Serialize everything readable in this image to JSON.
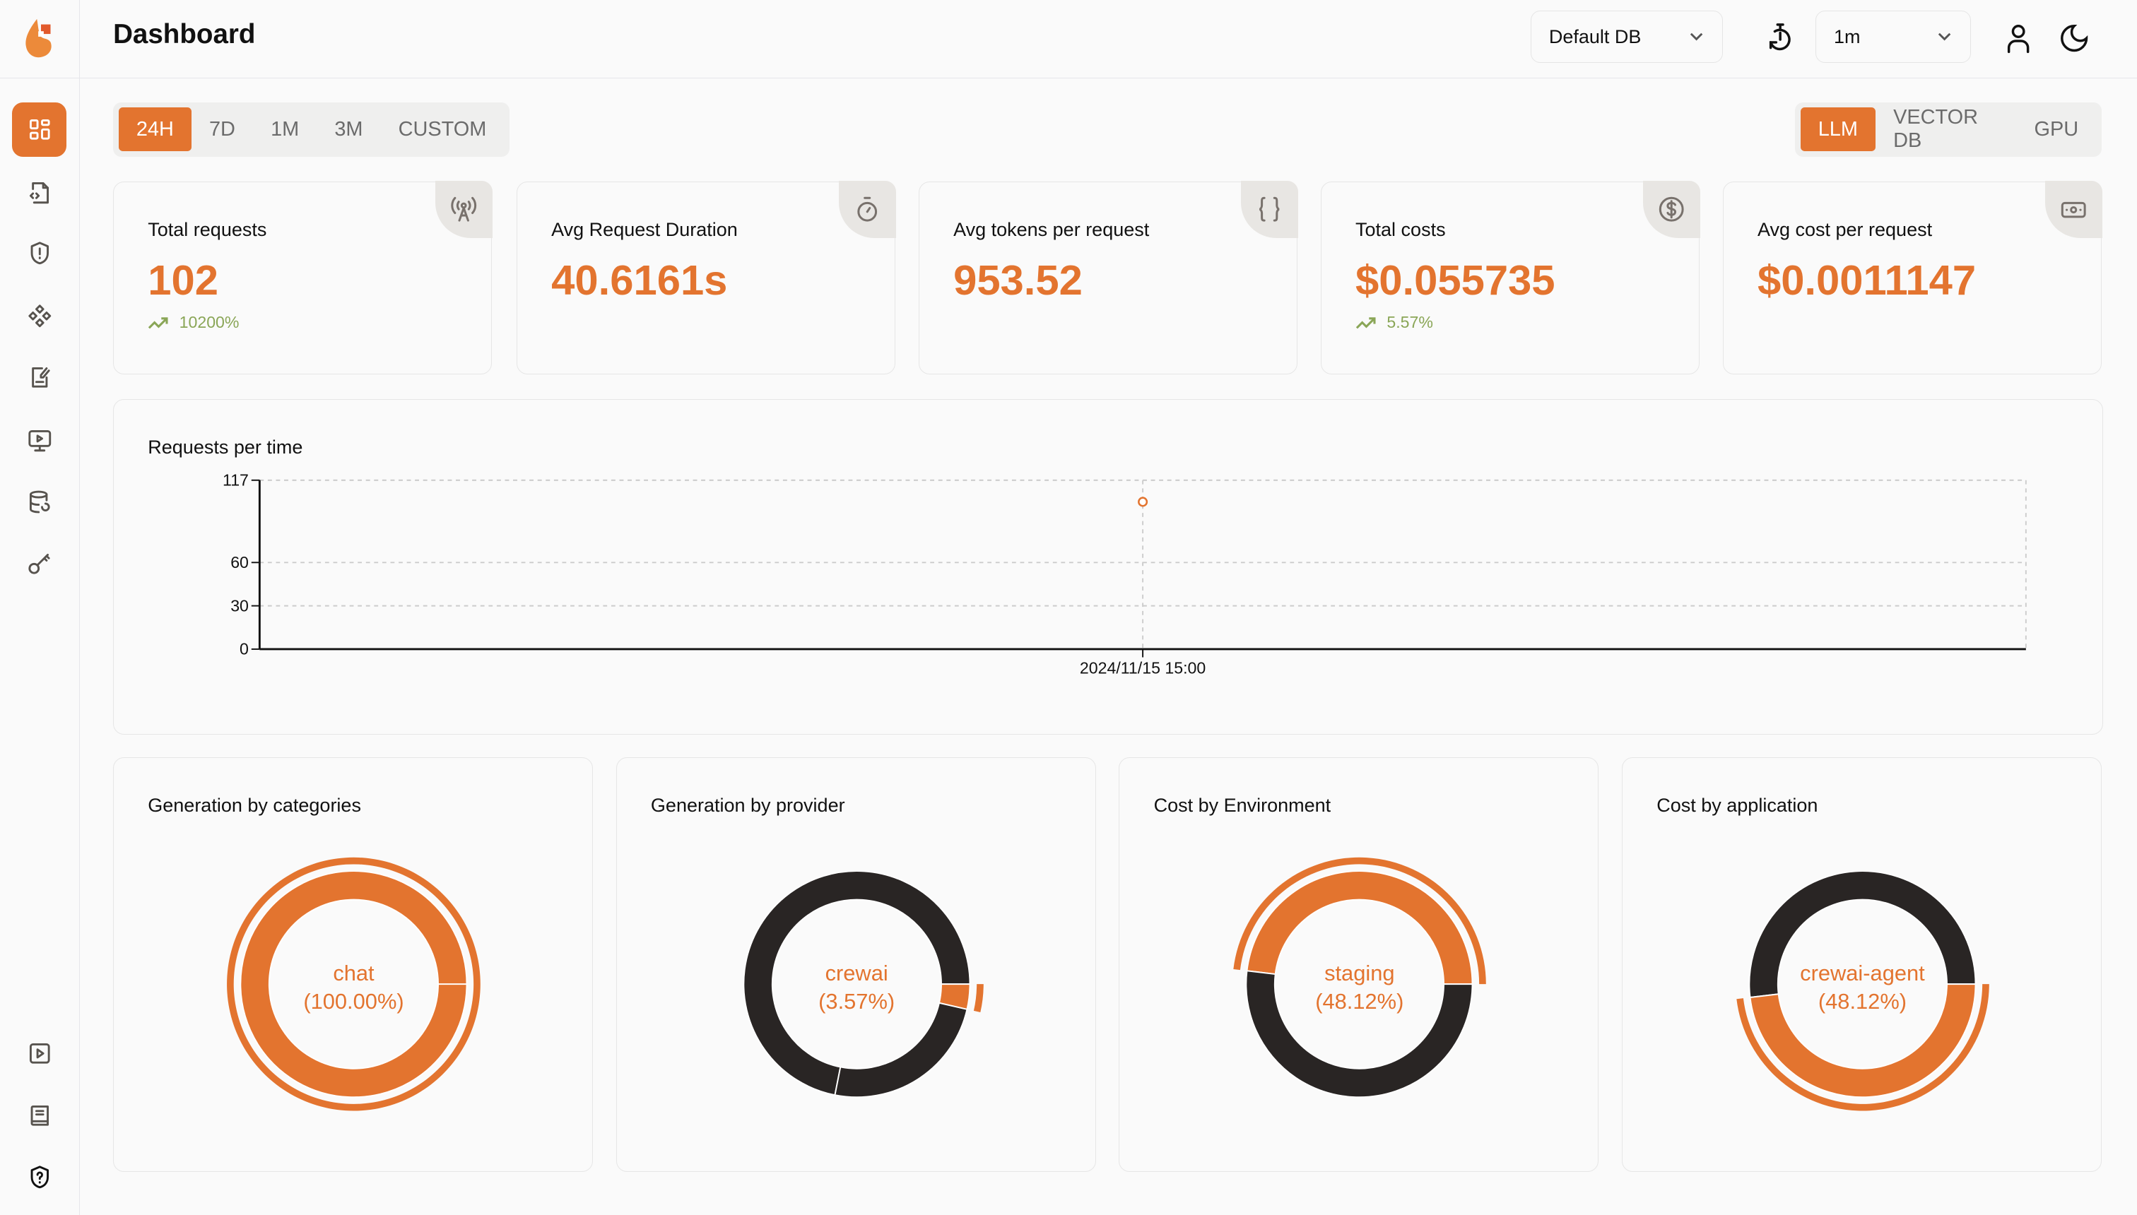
{
  "header": {
    "title": "Dashboard",
    "db_select": "Default DB",
    "refresh_select": "1m"
  },
  "sidebar": {
    "items": [
      "dashboard",
      "requests",
      "exceptions",
      "openground",
      "prompts",
      "vault",
      "databases",
      "api-keys"
    ],
    "bottom": [
      "demo",
      "docs",
      "help"
    ]
  },
  "time_tabs": [
    {
      "label": "24H",
      "active": true
    },
    {
      "label": "7D"
    },
    {
      "label": "1M"
    },
    {
      "label": "3M"
    },
    {
      "label": "CUSTOM"
    }
  ],
  "type_tabs": [
    {
      "label": "LLM",
      "active": true
    },
    {
      "label": "VECTOR DB"
    },
    {
      "label": "GPU"
    }
  ],
  "stats": [
    {
      "label": "Total requests",
      "value": "102",
      "trend": "10200%",
      "icon": "antenna-icon"
    },
    {
      "label": "Avg Request Duration",
      "value": "40.6161s",
      "trend": "",
      "icon": "stopwatch-icon"
    },
    {
      "label": "Avg tokens per request",
      "value": "953.52",
      "trend": "",
      "icon": "braces-icon"
    },
    {
      "label": "Total costs",
      "value": "$0.055735",
      "trend": "5.57%",
      "icon": "dollar-circle-icon"
    },
    {
      "label": "Avg cost per request",
      "value": "$0.0011147",
      "trend": "",
      "icon": "banknote-icon"
    }
  ],
  "colors": {
    "accent": "#e3742f",
    "dark": "#292524",
    "trend": "#8aa657"
  },
  "chart_data": [
    {
      "type": "line",
      "title": "Requests per time",
      "x": [
        "2024/11/15 15:00"
      ],
      "values": [
        102
      ],
      "yticks": [
        0,
        30,
        60,
        117
      ],
      "ylim": [
        0,
        117
      ],
      "grid": true
    },
    {
      "type": "pie",
      "title": "Generation by categories",
      "slices": [
        {
          "name": "chat",
          "value": 100.0
        }
      ],
      "active": {
        "name": "chat",
        "percent": "(100.00%)"
      }
    },
    {
      "type": "pie",
      "title": "Generation by provider",
      "slices": [
        {
          "name": "",
          "value": 71.9
        },
        {
          "name": "",
          "value": 24.53
        },
        {
          "name": "crewai",
          "value": 3.57
        }
      ],
      "active": {
        "name": "crewai",
        "percent": "(3.57%)"
      }
    },
    {
      "type": "pie",
      "title": "Cost by Environment",
      "slices": [
        {
          "name": "staging",
          "value": 48.12
        },
        {
          "name": "",
          "value": 51.88
        }
      ],
      "active": {
        "name": "staging",
        "percent": "(48.12%)"
      }
    },
    {
      "type": "pie",
      "title": "Cost by application",
      "slices": [
        {
          "name": "",
          "value": 51.88
        },
        {
          "name": "crewai-agent",
          "value": 48.12
        }
      ],
      "active": {
        "name": "crewai-agent",
        "percent": "(48.12%)"
      }
    }
  ]
}
